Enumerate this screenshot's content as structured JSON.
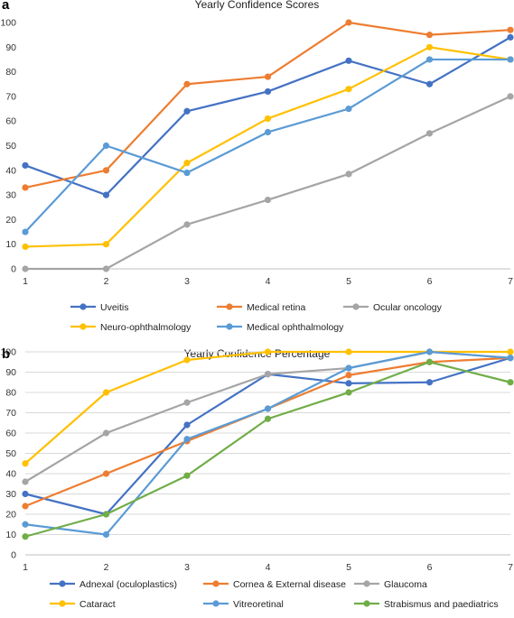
{
  "panels": [
    {
      "letter": "a",
      "title": "Yearly Confidence Scores"
    },
    {
      "letter": "b",
      "title": "Yearly Confidence Percentage"
    }
  ],
  "chart_data": [
    {
      "type": "line",
      "title": "Yearly Confidence Scores",
      "xlabel": "",
      "ylabel": "",
      "x": [
        1,
        2,
        3,
        4,
        5,
        6,
        7
      ],
      "ylim": [
        0,
        100
      ],
      "ytick_step": 10,
      "grid": false,
      "legend_position": "bottom",
      "series": [
        {
          "name": "Uveitis",
          "color": "#4472C4",
          "values": [
            42,
            30,
            64,
            72,
            84.5,
            75,
            94
          ]
        },
        {
          "name": "Medical retina",
          "color": "#ED7D31",
          "values": [
            33,
            40,
            75,
            78,
            100,
            95,
            97
          ]
        },
        {
          "name": "Ocular oncology",
          "color": "#A5A5A5",
          "values": [
            0,
            0,
            18,
            28,
            38.5,
            55,
            70
          ]
        },
        {
          "name": "Neuro-ophthalmology",
          "color": "#FFC000",
          "values": [
            9,
            10,
            43,
            61,
            73,
            90,
            85
          ]
        },
        {
          "name": "Medical ophthalmology",
          "color": "#5B9BD5",
          "values": [
            15,
            50,
            39,
            55.5,
            65,
            85,
            85
          ]
        }
      ]
    },
    {
      "type": "line",
      "title": "Yearly Confidence Percentage",
      "xlabel": "",
      "ylabel": "",
      "x": [
        1,
        2,
        3,
        4,
        5,
        6,
        7
      ],
      "ylim": [
        0,
        100
      ],
      "ytick_step": 10,
      "grid": true,
      "legend_position": "bottom",
      "series": [
        {
          "name": "Adnexal (oculoplastics)",
          "color": "#4472C4",
          "values": [
            30,
            20,
            64,
            89,
            84.5,
            85,
            97
          ]
        },
        {
          "name": "Cornea & External disease",
          "color": "#ED7D31",
          "values": [
            24,
            40,
            56,
            72,
            88.5,
            95,
            97
          ]
        },
        {
          "name": "Glaucoma",
          "color": "#A5A5A5",
          "values": [
            36,
            60,
            75,
            89,
            92,
            100,
            97
          ]
        },
        {
          "name": "Cataract",
          "color": "#FFC000",
          "values": [
            45,
            80,
            96,
            100,
            100,
            100,
            100
          ]
        },
        {
          "name": "Vitreoretinal",
          "color": "#5B9BD5",
          "values": [
            15,
            10,
            57,
            72,
            92,
            100,
            97
          ]
        },
        {
          "name": "Strabismus and paediatrics",
          "color": "#70AD47",
          "values": [
            9,
            20,
            39,
            67,
            80,
            95,
            85
          ]
        }
      ]
    }
  ]
}
